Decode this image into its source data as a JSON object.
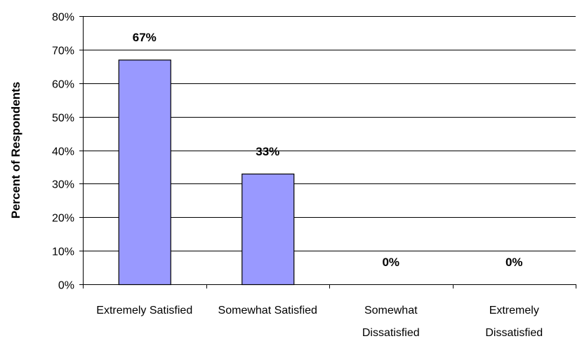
{
  "chart_data": {
    "type": "bar",
    "title": "",
    "xlabel": "",
    "ylabel": "Percent of Respondents",
    "categories": [
      [
        "Extremely Satisfied"
      ],
      [
        "Somewhat Satisfied"
      ],
      [
        "Somewhat",
        "Dissatisfied"
      ],
      [
        "Extremely",
        "Dissatisfied"
      ]
    ],
    "values": [
      67,
      33,
      0,
      0
    ],
    "data_labels": [
      "67%",
      "33%",
      "0%",
      "0%"
    ],
    "ylim": [
      0,
      80
    ],
    "yticks": [
      "0%",
      "10%",
      "20%",
      "30%",
      "40%",
      "50%",
      "60%",
      "70%",
      "80%"
    ],
    "grid": true,
    "legend": "none",
    "colors": {
      "bar_fill": "#9999ff",
      "bar_stroke": "#000000",
      "grid": "#000000",
      "axis": "#000000"
    }
  }
}
